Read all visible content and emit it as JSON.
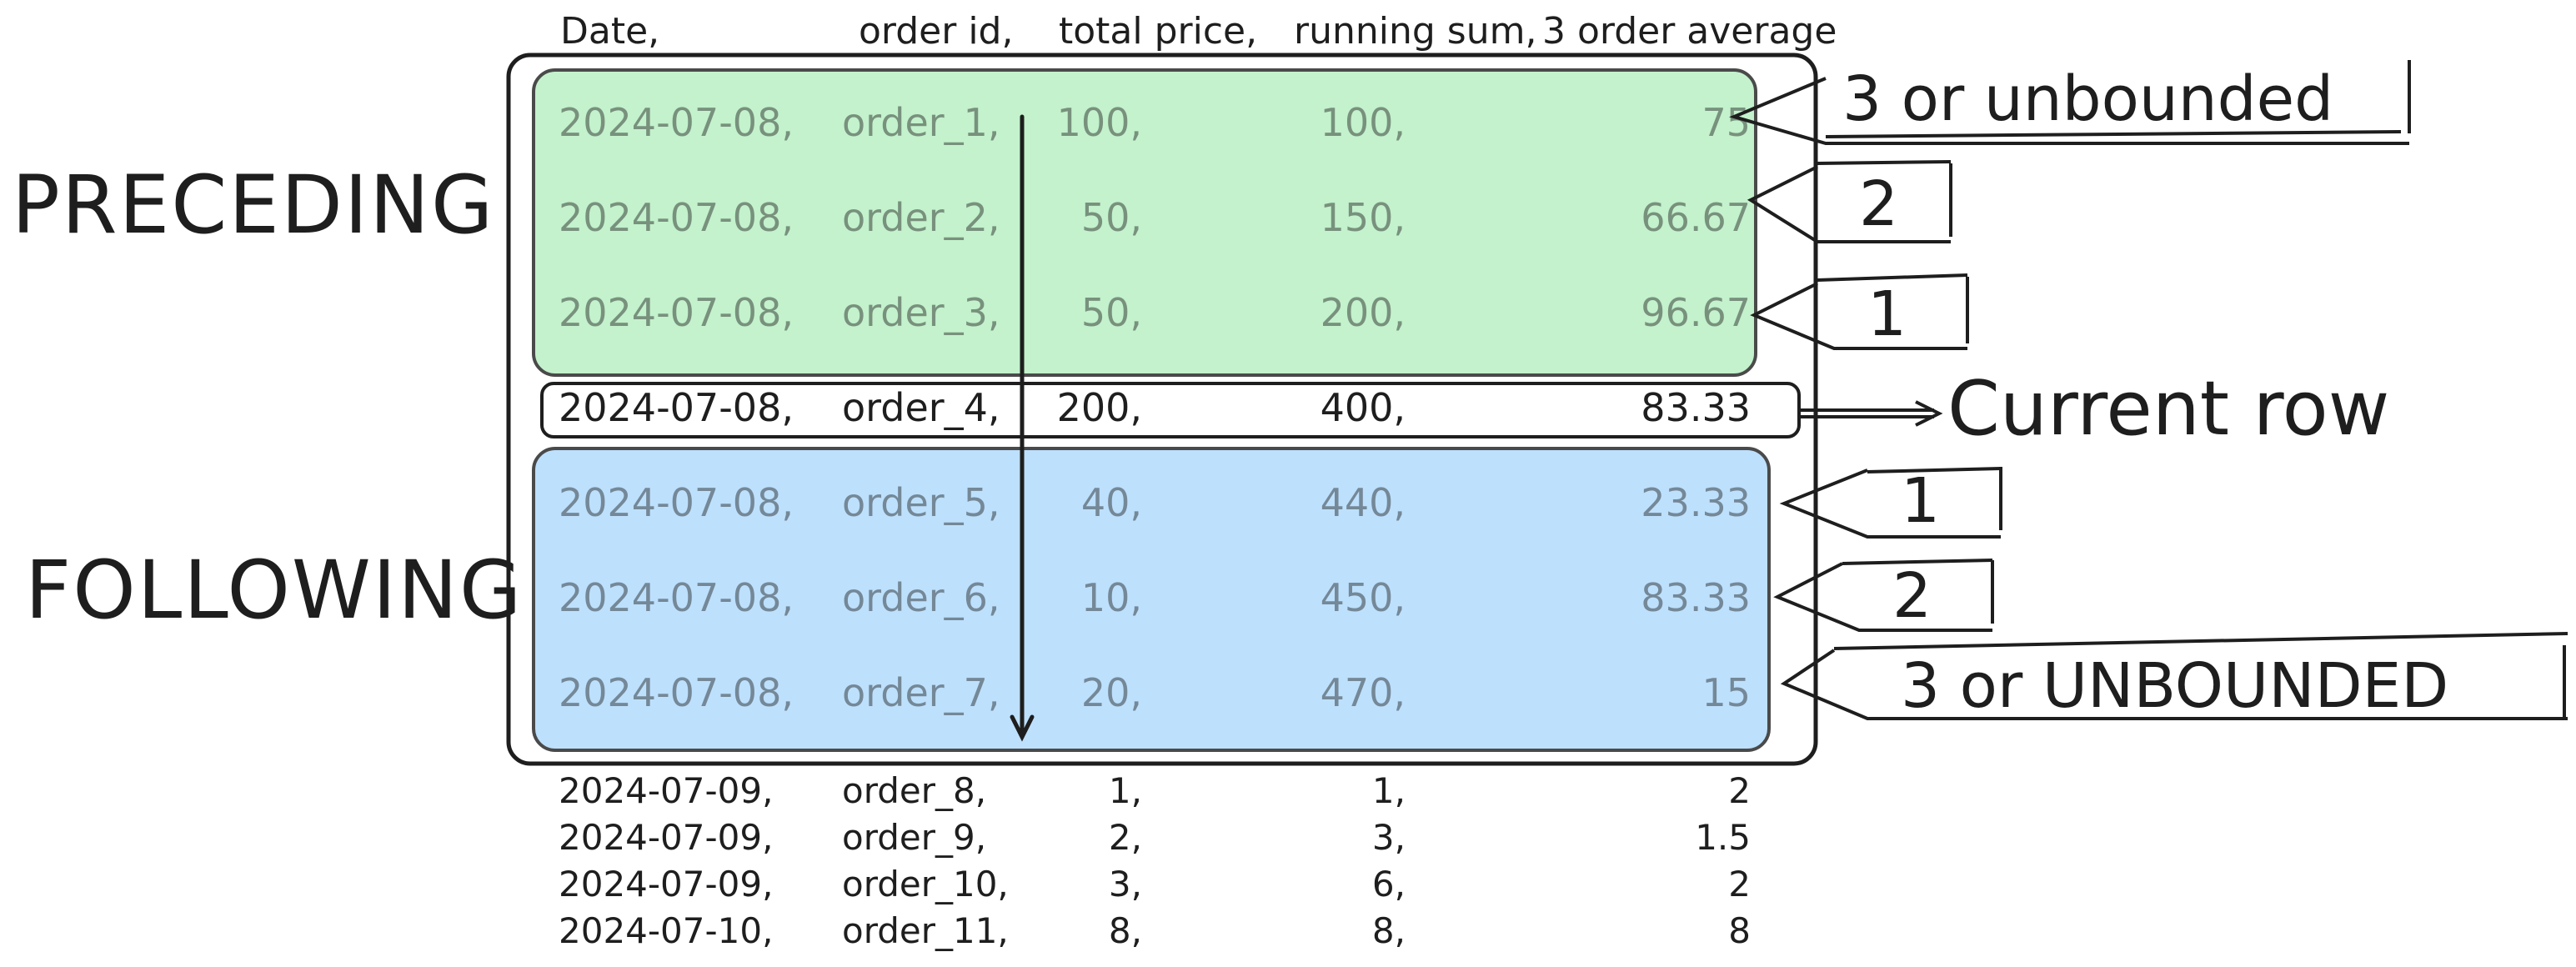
{
  "header": {
    "date": "Date,",
    "order_id": "order id,",
    "total_price": "total price,",
    "running_sum": "running sum,",
    "avg": "3 order average"
  },
  "side_labels": {
    "preceding": "PRECEDING",
    "following": "FOLLOWING"
  },
  "offset_labels": {
    "preceding": [
      "3 or unbounded",
      "2",
      "1"
    ],
    "current": "Current row",
    "following": [
      "1",
      "2",
      "3 or UNBOUNDED"
    ]
  },
  "rows": [
    {
      "group": "preceding",
      "date": "2024-07-08,",
      "order": "order_1,",
      "price": "100,",
      "sum": "100,",
      "avg": "75"
    },
    {
      "group": "preceding",
      "date": "2024-07-08,",
      "order": "order_2,",
      "price": "50,",
      "sum": "150,",
      "avg": "66.67"
    },
    {
      "group": "preceding",
      "date": "2024-07-08,",
      "order": "order_3,",
      "price": "50,",
      "sum": "200,",
      "avg": "96.67"
    },
    {
      "group": "current",
      "date": "2024-07-08,",
      "order": "order_4,",
      "price": "200,",
      "sum": "400,",
      "avg": "83.33"
    },
    {
      "group": "following",
      "date": "2024-07-08,",
      "order": "order_5,",
      "price": "40,",
      "sum": "440,",
      "avg": "23.33"
    },
    {
      "group": "following",
      "date": "2024-07-08,",
      "order": "order_6,",
      "price": "10,",
      "sum": "450,",
      "avg": "83.33"
    },
    {
      "group": "following",
      "date": "2024-07-08,",
      "order": "order_7,",
      "price": "20,",
      "sum": "470,",
      "avg": "15"
    },
    {
      "group": "outside",
      "date": "2024-07-09,",
      "order": "order_8,",
      "price": "1,",
      "sum": "1,",
      "avg": "2"
    },
    {
      "group": "outside",
      "date": "2024-07-09,",
      "order": "order_9,",
      "price": "2,",
      "sum": "3,",
      "avg": "1.5"
    },
    {
      "group": "outside",
      "date": "2024-07-09,",
      "order": "order_10,",
      "price": "3,",
      "sum": "6,",
      "avg": "2"
    },
    {
      "group": "outside",
      "date": "2024-07-10,",
      "order": "order_11,",
      "price": "8,",
      "sum": "8,",
      "avg": "8"
    }
  ],
  "colors": {
    "preceding_fill": "#c3f2cc",
    "following_fill": "#bde0fd",
    "stroke": "#1e1e1e",
    "box_stroke": "#4a4a4a"
  }
}
